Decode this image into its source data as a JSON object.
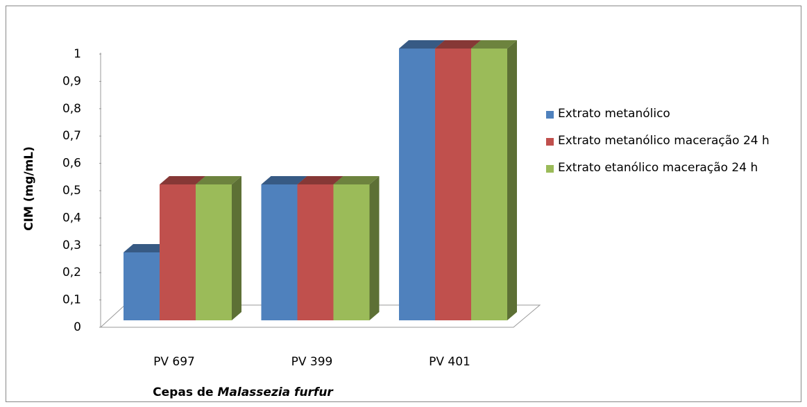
{
  "chart_data": {
    "type": "bar3d",
    "ylabel": "CIM (mg/mL)",
    "xlabel": [
      "Cepas de",
      "Malassezia furfur"
    ],
    "categories": [
      "PV 697",
      "PV 399",
      "PV 401"
    ],
    "series": [
      {
        "name": "Extrato metanólico",
        "color": "#4f81bd",
        "values": [
          0.25,
          0.5,
          1
        ]
      },
      {
        "name": "Extrato metanólico maceração 24 h",
        "color": "#c0504d",
        "values": [
          0.5,
          0.5,
          1
        ]
      },
      {
        "name": "Extrato etanólico maceração 24 h",
        "color": "#9bbb59",
        "values": [
          0.5,
          0.5,
          1
        ]
      }
    ],
    "ylim": [
      0,
      1
    ],
    "yticks": [
      0,
      {
        "value": 0.1,
        "label": "0,1"
      },
      {
        "value": 0.2,
        "label": "0,2"
      },
      {
        "value": 0.3,
        "label": "0,3"
      },
      {
        "value": 0.4,
        "label": "0,4"
      },
      {
        "value": 0.5,
        "label": "0,5"
      },
      {
        "value": 0.6,
        "label": "0,6"
      },
      {
        "value": 0.7,
        "label": "0,7"
      },
      {
        "value": 0.8,
        "label": "0,8"
      },
      {
        "value": 0.9,
        "label": "0,9"
      },
      1
    ],
    "legend": "right"
  }
}
